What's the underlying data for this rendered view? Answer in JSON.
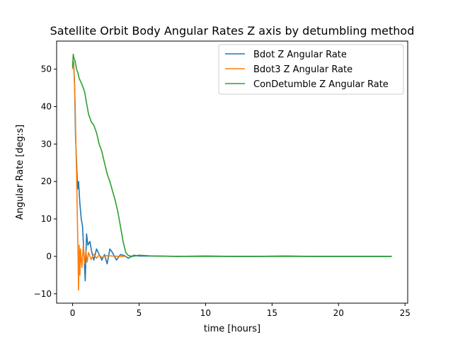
{
  "chart_data": {
    "type": "line",
    "title": "Satellite Orbit Body Angular Rates Z axis by detumbling method",
    "xlabel": "time [hours]",
    "ylabel": "Angular Rate [deg:s]",
    "xlim": [
      -1.2,
      25.2
    ],
    "ylim": [
      -12.5,
      57.5
    ],
    "xticks": [
      0,
      5,
      10,
      15,
      20,
      25
    ],
    "yticks": [
      -10,
      0,
      10,
      20,
      30,
      40,
      50
    ],
    "legend_position": "upper-right",
    "series": [
      {
        "name": "Bdot Z Angular Rate",
        "color": "#1f77b4",
        "x": [
          0.0,
          0.08,
          0.15,
          0.22,
          0.3,
          0.38,
          0.45,
          0.55,
          0.65,
          0.75,
          0.85,
          0.95,
          1.05,
          1.15,
          1.3,
          1.45,
          1.6,
          1.8,
          2.0,
          2.2,
          2.4,
          2.6,
          2.8,
          3.0,
          3.3,
          3.6,
          3.9,
          4.2,
          4.6,
          5.0,
          6.0,
          8.0,
          10.0,
          12.0,
          14.0,
          16.0,
          18.0,
          20.0,
          22.0,
          24.0
        ],
        "y": [
          51,
          52,
          46,
          32,
          25,
          18,
          20,
          14,
          10,
          8,
          1,
          -6.5,
          6,
          3,
          4,
          1,
          -1,
          2,
          0.5,
          -1,
          0.5,
          -2,
          2,
          1,
          -1,
          0.5,
          0.2,
          -0.5,
          0.3,
          0.1,
          0.1,
          0.0,
          0.1,
          0.0,
          0.0,
          0.1,
          0.0,
          0.0,
          0.0,
          0.0
        ]
      },
      {
        "name": "Bdot3 Z Angular Rate",
        "color": "#ff7f0e",
        "x": [
          0.0,
          0.05,
          0.1,
          0.15,
          0.2,
          0.25,
          0.3,
          0.35,
          0.4,
          0.45,
          0.5,
          0.55,
          0.6,
          0.7,
          0.8,
          0.9,
          1.0,
          1.1,
          1.2,
          1.4,
          1.6,
          1.8,
          2.0,
          2.2,
          2.5,
          3.0,
          3.5,
          4.0
        ],
        "y": [
          50,
          52,
          50,
          45,
          40,
          30,
          22,
          12,
          2,
          -9,
          3,
          -5,
          2,
          -3,
          3,
          -2,
          1.5,
          -1.5,
          1,
          -0.8,
          0.6,
          -0.5,
          0.4,
          -0.3,
          0.2,
          0.1,
          0.0,
          0.0
        ]
      },
      {
        "name": "ConDetumble Z Angular Rate",
        "color": "#2ca02c",
        "x": [
          0.0,
          0.05,
          0.1,
          0.2,
          0.3,
          0.4,
          0.5,
          0.7,
          0.9,
          1.0,
          1.2,
          1.4,
          1.6,
          1.8,
          2.0,
          2.2,
          2.4,
          2.6,
          2.8,
          3.0,
          3.2,
          3.4,
          3.6,
          3.8,
          4.0,
          4.2,
          4.5,
          5.0,
          6.0,
          8.0,
          10.0,
          12.0,
          14.0,
          16.0,
          18.0,
          20.0,
          22.0,
          24.0
        ],
        "y": [
          50.5,
          54,
          53,
          52,
          50,
          49,
          47.5,
          46,
          44,
          42,
          38,
          36,
          35,
          33,
          30,
          28,
          25,
          22,
          20,
          17.5,
          15,
          12,
          8,
          4,
          1,
          0.2,
          0.0,
          0.3,
          0.1,
          0.0,
          0.0,
          0.0,
          0.0,
          0.0,
          0.0,
          0.0,
          0.0,
          0.0
        ]
      }
    ]
  }
}
